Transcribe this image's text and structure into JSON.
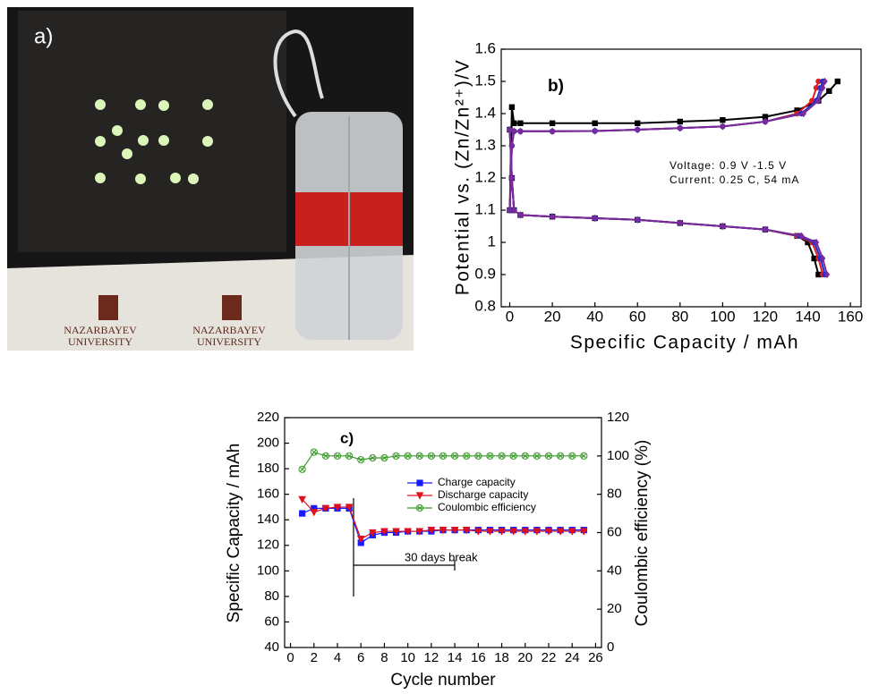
{
  "photo": {
    "label": "a)",
    "signs": [
      "NAZARBAYEV",
      "UNIVERSITY",
      "NAZARBAYEV",
      "UNIVERSITY"
    ]
  },
  "chart_data": [
    {
      "type": "line",
      "title": "b)",
      "x_label": "Specific Capacity / mAh",
      "y_label": "Potential vs. (Zn/Zn²⁺)/V",
      "annotations": [
        "Voltage: 0.9 V -1.5 V",
        "Current: 0.25 C, 54 mA"
      ],
      "xlim": [
        -4,
        165
      ],
      "xticks": [
        0,
        20,
        40,
        60,
        80,
        100,
        120,
        140,
        160
      ],
      "ylim": [
        0.8,
        1.6
      ],
      "yticks": [
        0.8,
        0.9,
        1,
        1.1,
        1.2,
        1.3,
        1.4,
        1.5,
        1.6
      ],
      "grid": false,
      "series": [
        {
          "color": "#000000",
          "marker": "square",
          "x": [
            0,
            1,
            2,
            5,
            20,
            40,
            60,
            80,
            100,
            120,
            135,
            145,
            150,
            154
          ],
          "values": [
            1.1,
            1.42,
            1.37,
            1.37,
            1.37,
            1.37,
            1.37,
            1.375,
            1.38,
            1.39,
            1.41,
            1.44,
            1.47,
            1.5
          ]
        },
        {
          "color": "#000000",
          "marker": "square",
          "x": [
            0,
            1,
            2,
            5,
            20,
            40,
            60,
            80,
            100,
            120,
            135,
            140,
            143,
            145
          ],
          "values": [
            1.35,
            1.2,
            1.1,
            1.085,
            1.08,
            1.075,
            1.07,
            1.06,
            1.05,
            1.04,
            1.02,
            1.0,
            0.95,
            0.9
          ]
        },
        {
          "color": "#e02020",
          "marker": "circle",
          "x": [
            0,
            1,
            2,
            5,
            20,
            40,
            60,
            80,
            100,
            120,
            135,
            142,
            144,
            145
          ],
          "values": [
            1.1,
            1.3,
            1.345,
            1.345,
            1.345,
            1.346,
            1.35,
            1.355,
            1.36,
            1.375,
            1.4,
            1.44,
            1.48,
            1.5
          ]
        },
        {
          "color": "#e02020",
          "marker": "circle",
          "x": [
            0,
            1,
            2,
            5,
            20,
            40,
            60,
            80,
            100,
            120,
            135,
            142,
            145,
            147
          ],
          "values": [
            1.35,
            1.2,
            1.1,
            1.085,
            1.08,
            1.075,
            1.07,
            1.06,
            1.05,
            1.04,
            1.02,
            1.0,
            0.95,
            0.9
          ]
        },
        {
          "color": "#2030d0",
          "marker": "circle",
          "x": [
            0,
            1,
            2,
            5,
            20,
            40,
            60,
            80,
            100,
            120,
            137,
            144,
            146,
            147
          ],
          "values": [
            1.1,
            1.3,
            1.345,
            1.345,
            1.345,
            1.346,
            1.35,
            1.355,
            1.36,
            1.375,
            1.4,
            1.44,
            1.48,
            1.5
          ]
        },
        {
          "color": "#2030d0",
          "marker": "circle",
          "x": [
            0,
            1,
            2,
            5,
            20,
            40,
            60,
            80,
            100,
            120,
            136,
            143,
            146,
            148
          ],
          "values": [
            1.35,
            1.2,
            1.1,
            1.085,
            1.08,
            1.075,
            1.07,
            1.06,
            1.05,
            1.04,
            1.02,
            1.0,
            0.95,
            0.9
          ]
        },
        {
          "color": "#7a2a9a",
          "marker": "diamond",
          "x": [
            0,
            1,
            2,
            5,
            20,
            40,
            60,
            80,
            100,
            120,
            138,
            145,
            147,
            148
          ],
          "values": [
            1.1,
            1.3,
            1.345,
            1.345,
            1.345,
            1.346,
            1.35,
            1.355,
            1.36,
            1.375,
            1.4,
            1.44,
            1.48,
            1.5
          ]
        },
        {
          "color": "#7a2a9a",
          "marker": "diamond",
          "x": [
            0,
            1,
            2,
            5,
            20,
            40,
            60,
            80,
            100,
            120,
            137,
            144,
            147,
            149
          ],
          "values": [
            1.35,
            1.2,
            1.1,
            1.085,
            1.08,
            1.075,
            1.07,
            1.06,
            1.05,
            1.04,
            1.02,
            1.0,
            0.95,
            0.9
          ]
        }
      ]
    },
    {
      "type": "line",
      "title": "c)",
      "x_label": "Cycle number",
      "y_label": "Specific Capacity / mAh",
      "y2_label": "Coulombic efficiency (%)",
      "annotations": [
        "30 days break"
      ],
      "legend": "top",
      "xlim": [
        -0.5,
        26.5
      ],
      "xticks": [
        0,
        2,
        4,
        6,
        8,
        10,
        12,
        14,
        16,
        18,
        20,
        22,
        24,
        26
      ],
      "ylim": [
        40,
        220
      ],
      "yticks": [
        40,
        60,
        80,
        100,
        120,
        140,
        160,
        180,
        200,
        220
      ],
      "y2lim": [
        0,
        120
      ],
      "y2ticks": [
        0,
        20,
        40,
        60,
        80,
        100,
        120
      ],
      "grid": false,
      "x": [
        1,
        2,
        3,
        4,
        5,
        6,
        7,
        8,
        9,
        10,
        11,
        12,
        13,
        14,
        15,
        16,
        17,
        18,
        19,
        20,
        21,
        22,
        23,
        24,
        25
      ],
      "series": [
        {
          "name": "Charge capacity",
          "color": "#1a1aff",
          "marker": "square",
          "values": [
            145,
            149,
            149,
            149,
            149,
            122,
            128,
            130,
            130,
            131,
            131,
            131,
            132,
            132,
            132,
            132,
            132,
            132,
            132,
            132,
            132,
            132,
            132,
            132,
            132
          ]
        },
        {
          "name": "Discharge capacity",
          "color": "#e0101a",
          "marker": "triangle",
          "values": [
            156,
            146,
            149,
            150,
            150,
            125,
            130,
            131,
            131,
            131,
            131,
            132,
            132,
            132,
            132,
            131,
            131,
            131,
            131,
            131,
            131,
            131,
            131,
            131,
            131
          ]
        },
        {
          "name": "Coulombic efficiency",
          "color": "#3a9a2a",
          "marker": "circlex",
          "axis": "y2",
          "values": [
            93,
            102,
            100,
            100,
            100,
            98,
            99,
            99,
            100,
            100,
            100,
            100,
            100,
            100,
            100,
            100,
            100,
            100,
            100,
            100,
            100,
            100,
            100,
            100,
            100
          ]
        }
      ]
    }
  ]
}
